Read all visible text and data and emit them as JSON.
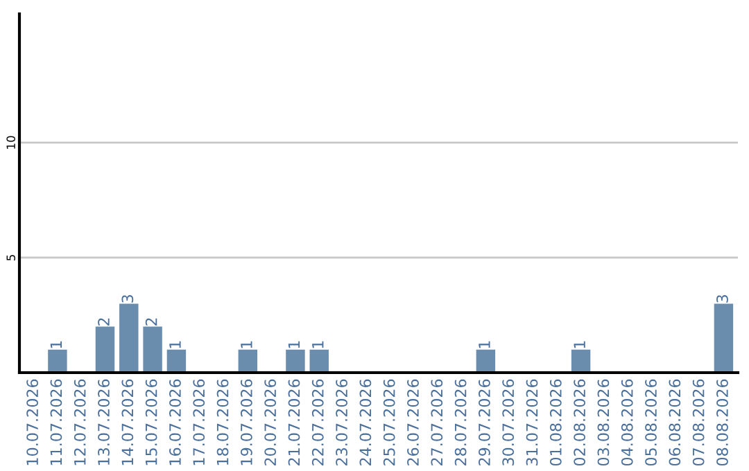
{
  "chart_data": {
    "type": "bar",
    "categories": [
      "10.07.2026",
      "11.07.2026",
      "12.07.2026",
      "13.07.2026",
      "14.07.2026",
      "15.07.2026",
      "16.07.2026",
      "17.07.2026",
      "18.07.2026",
      "19.07.2026",
      "20.07.2026",
      "21.07.2026",
      "22.07.2026",
      "23.07.2026",
      "24.07.2026",
      "25.07.2026",
      "26.07.2026",
      "27.07.2026",
      "28.07.2026",
      "29.07.2026",
      "30.07.2026",
      "31.07.2026",
      "01.08.2026",
      "02.08.2026",
      "03.08.2026",
      "04.08.2026",
      "05.08.2026",
      "06.08.2026",
      "07.08.2026",
      "08.08.2026"
    ],
    "values": [
      0,
      1,
      0,
      2,
      3,
      2,
      1,
      0,
      0,
      1,
      0,
      1,
      1,
      0,
      0,
      0,
      0,
      0,
      0,
      1,
      0,
      0,
      0,
      1,
      0,
      0,
      0,
      0,
      0,
      3
    ],
    "value_labels": [
      null,
      "1",
      null,
      "2",
      "3",
      "2",
      "1",
      null,
      null,
      "1",
      null,
      "1",
      "1",
      null,
      null,
      null,
      null,
      null,
      null,
      "1",
      null,
      null,
      null,
      "1",
      null,
      null,
      null,
      null,
      null,
      "3"
    ],
    "color": "#6a8cad",
    "ylim": [
      0,
      15.6
    ],
    "yticks": [
      5,
      10
    ],
    "grid": "y"
  }
}
